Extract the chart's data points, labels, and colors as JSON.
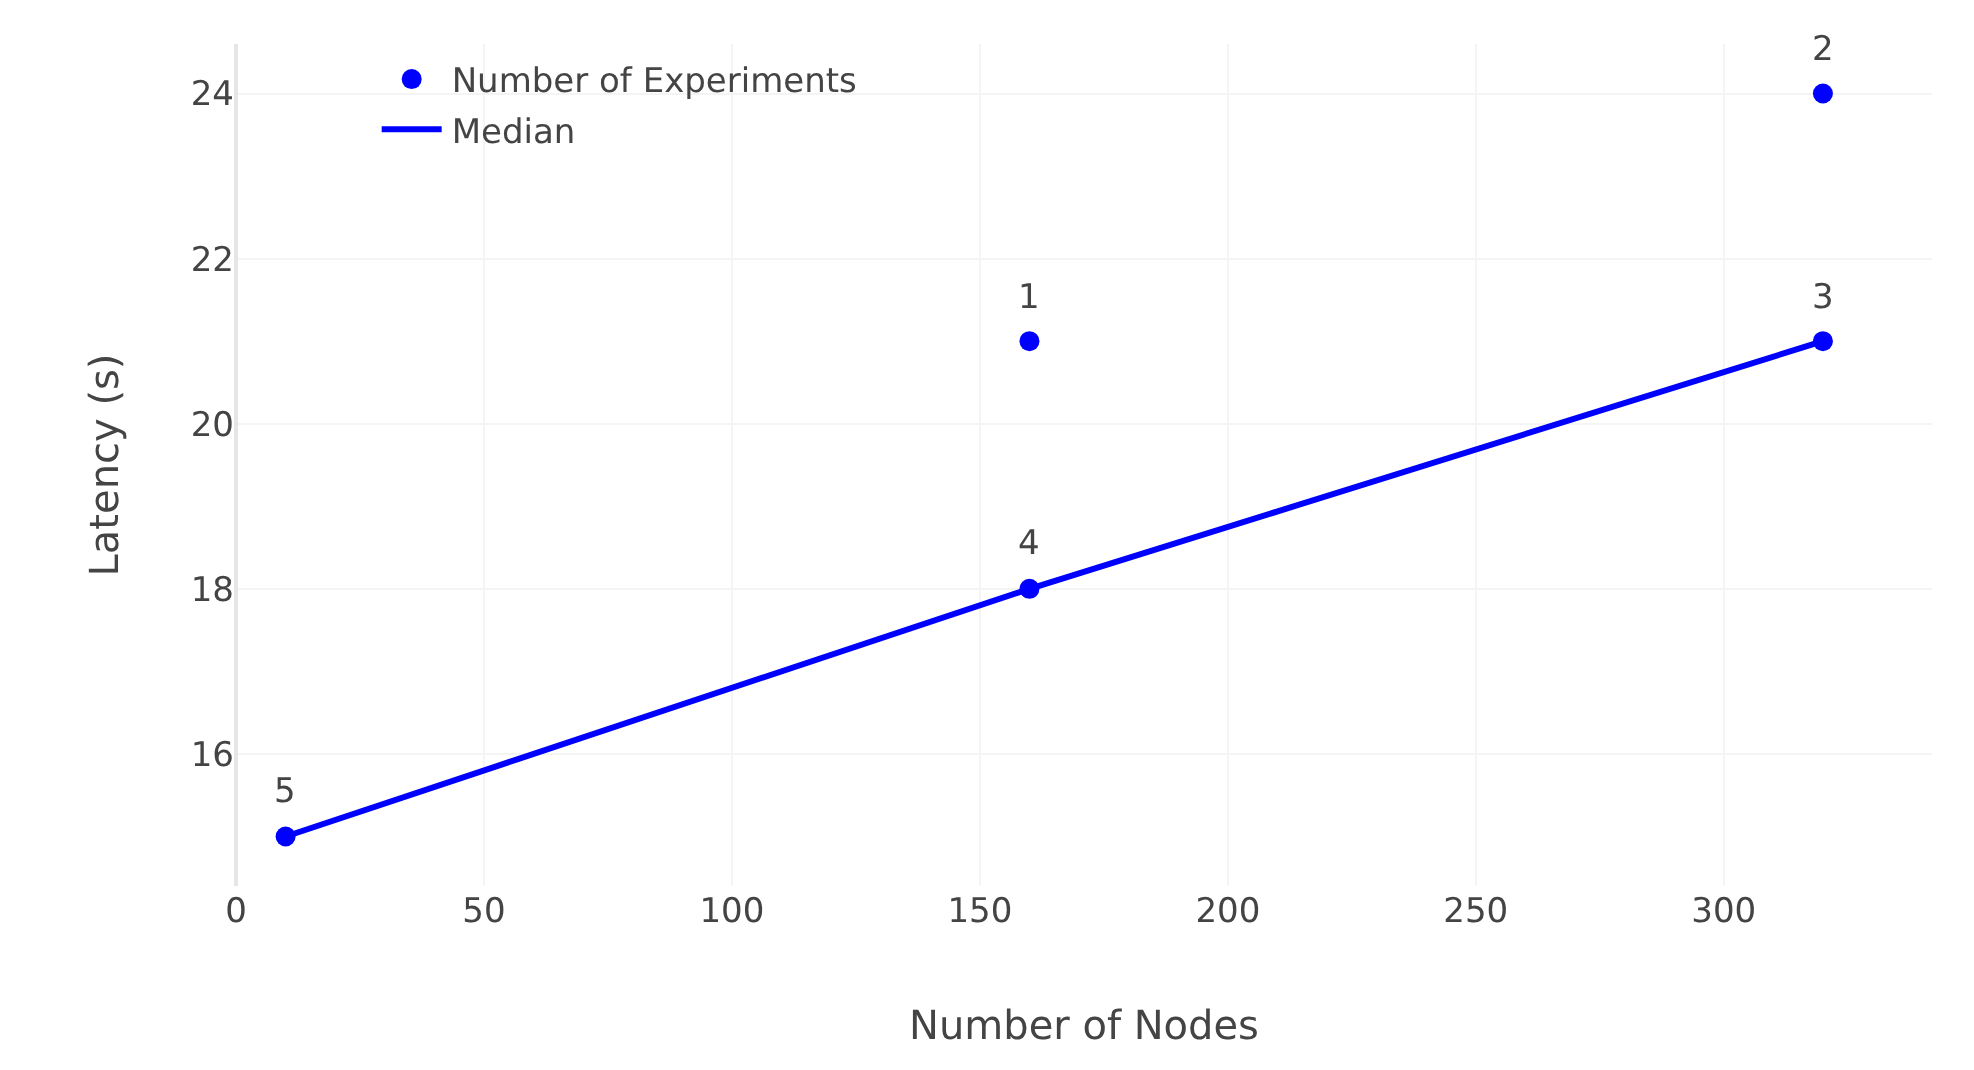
{
  "chart_data": {
    "type": "scatter",
    "xlabel": "Number of Nodes",
    "ylabel": "Latency (s)",
    "series": [
      {
        "name": "Number of Experiments",
        "color": "#0000ff",
        "marker": "circle",
        "x": [
          10,
          160,
          160,
          320,
          320
        ],
        "values": [
          15,
          18,
          21,
          21,
          24
        ]
      },
      {
        "name": "Median",
        "type": "line",
        "color": "#0000ff",
        "marker": "none",
        "line_style": "solid",
        "x": [
          10,
          160,
          320
        ],
        "values": [
          15,
          18,
          21
        ]
      }
    ],
    "annotations": [
      {
        "text": "5",
        "x": 10,
        "y": 15
      },
      {
        "text": "4",
        "x": 160,
        "y": 18
      },
      {
        "text": "1",
        "x": 160,
        "y": 21
      },
      {
        "text": "3",
        "x": 320,
        "y": 21
      },
      {
        "text": "2",
        "x": 320,
        "y": 24
      }
    ],
    "xlim": [
      0,
      342
    ],
    "xticks": [
      0,
      50,
      100,
      150,
      200,
      250,
      300
    ],
    "ylim": [
      14.4,
      24.6
    ],
    "yticks": [
      16,
      18,
      20,
      22,
      24
    ],
    "grid": true,
    "legend": "top left"
  }
}
